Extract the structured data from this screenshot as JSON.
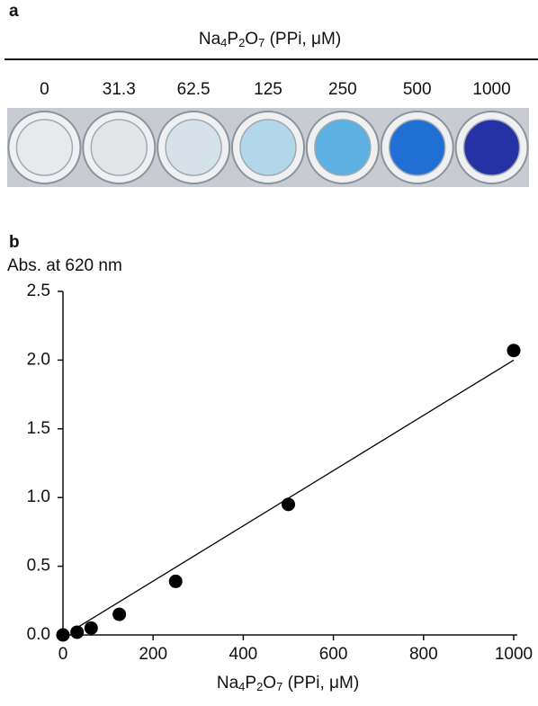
{
  "chart_data": [
    {
      "type": "wells",
      "label": "a",
      "title": "Na4P2O7 (PPi, μM)",
      "categories": [
        "0",
        "31.3",
        "62.5",
        "125",
        "250",
        "500",
        "1000"
      ],
      "colors": [
        "#e7e9eb",
        "#e3e6e9",
        "#d5e2ea",
        "#b2d6ea",
        "#5cb0e2",
        "#1f6fd5",
        "#2432a6"
      ]
    },
    {
      "type": "scatter",
      "label": "b",
      "y_label": "Abs. at 620 nm",
      "x_label": "Na4P2O7 (PPi, μM)",
      "x": [
        0,
        31.3,
        62.5,
        125,
        250,
        500,
        1000
      ],
      "y": [
        0.0,
        0.02,
        0.05,
        0.15,
        0.39,
        0.95,
        2.07
      ],
      "fit": {
        "x": [
          30,
          1000
        ],
        "y": [
          0.05,
          2.0
        ]
      },
      "color": "#000000",
      "xlim": [
        0,
        1000
      ],
      "xticks": [
        0,
        200,
        400,
        600,
        800,
        1000
      ],
      "ylim": [
        0,
        2.5
      ],
      "yticks": [
        {
          "value": 0,
          "label": "0.0"
        },
        0.5,
        {
          "value": 1,
          "label": "1.0"
        },
        1.5,
        {
          "value": 2,
          "label": "2.0"
        },
        2.5
      ]
    }
  ]
}
